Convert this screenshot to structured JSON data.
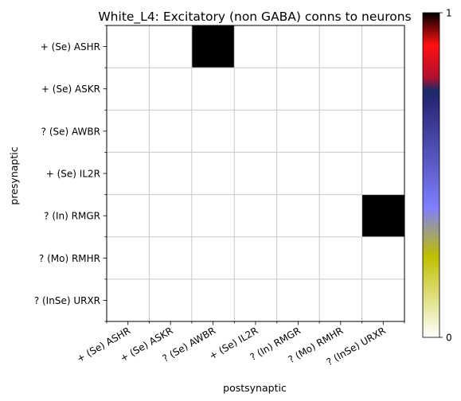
{
  "chart_data": {
    "type": "heatmap",
    "title": "White_L4: Excitatory (non GABA) conns to neurons",
    "xlabel": "postsynaptic",
    "ylabel": "presynaptic",
    "x_categories": [
      "+ (Se) ASHR",
      "+ (Se) ASKR",
      "? (Se) AWBR",
      "+ (Se) IL2R",
      "? (In) RMGR",
      "? (Mo) RMHR",
      "? (InSe) URXR"
    ],
    "y_categories": [
      "+ (Se) ASHR",
      "+ (Se) ASKR",
      "? (Se) AWBR",
      "+ (Se) IL2R",
      "? (In) RMGR",
      "? (Mo) RMHR",
      "? (InSe) URXR"
    ],
    "values": [
      [
        0,
        0,
        1,
        0,
        0,
        0,
        0
      ],
      [
        0,
        0,
        0,
        0,
        0,
        0,
        0
      ],
      [
        0,
        0,
        0,
        0,
        0,
        0,
        0
      ],
      [
        0,
        0,
        0,
        0,
        0,
        0,
        0
      ],
      [
        0,
        0,
        0,
        0,
        0,
        0,
        1
      ],
      [
        0,
        0,
        0,
        0,
        0,
        0,
        0
      ],
      [
        0,
        0,
        0,
        0,
        0,
        0,
        0
      ]
    ],
    "grid": true,
    "colorbar": {
      "range": [
        0,
        1
      ],
      "ticks": [
        "0",
        "1"
      ],
      "stops": [
        {
          "v": 0.0,
          "color": "#ffffff"
        },
        {
          "v": 0.25,
          "color": "#bfbf00"
        },
        {
          "v": 0.4,
          "color": "#7f7fff"
        },
        {
          "v": 0.72,
          "color": "#2a2a7a"
        },
        {
          "v": 0.76,
          "color": "#1a2a6a"
        },
        {
          "v": 0.8,
          "color": "#b01030"
        },
        {
          "v": 0.9,
          "color": "#ff1010"
        },
        {
          "v": 1.0,
          "color": "#000000"
        }
      ]
    }
  }
}
